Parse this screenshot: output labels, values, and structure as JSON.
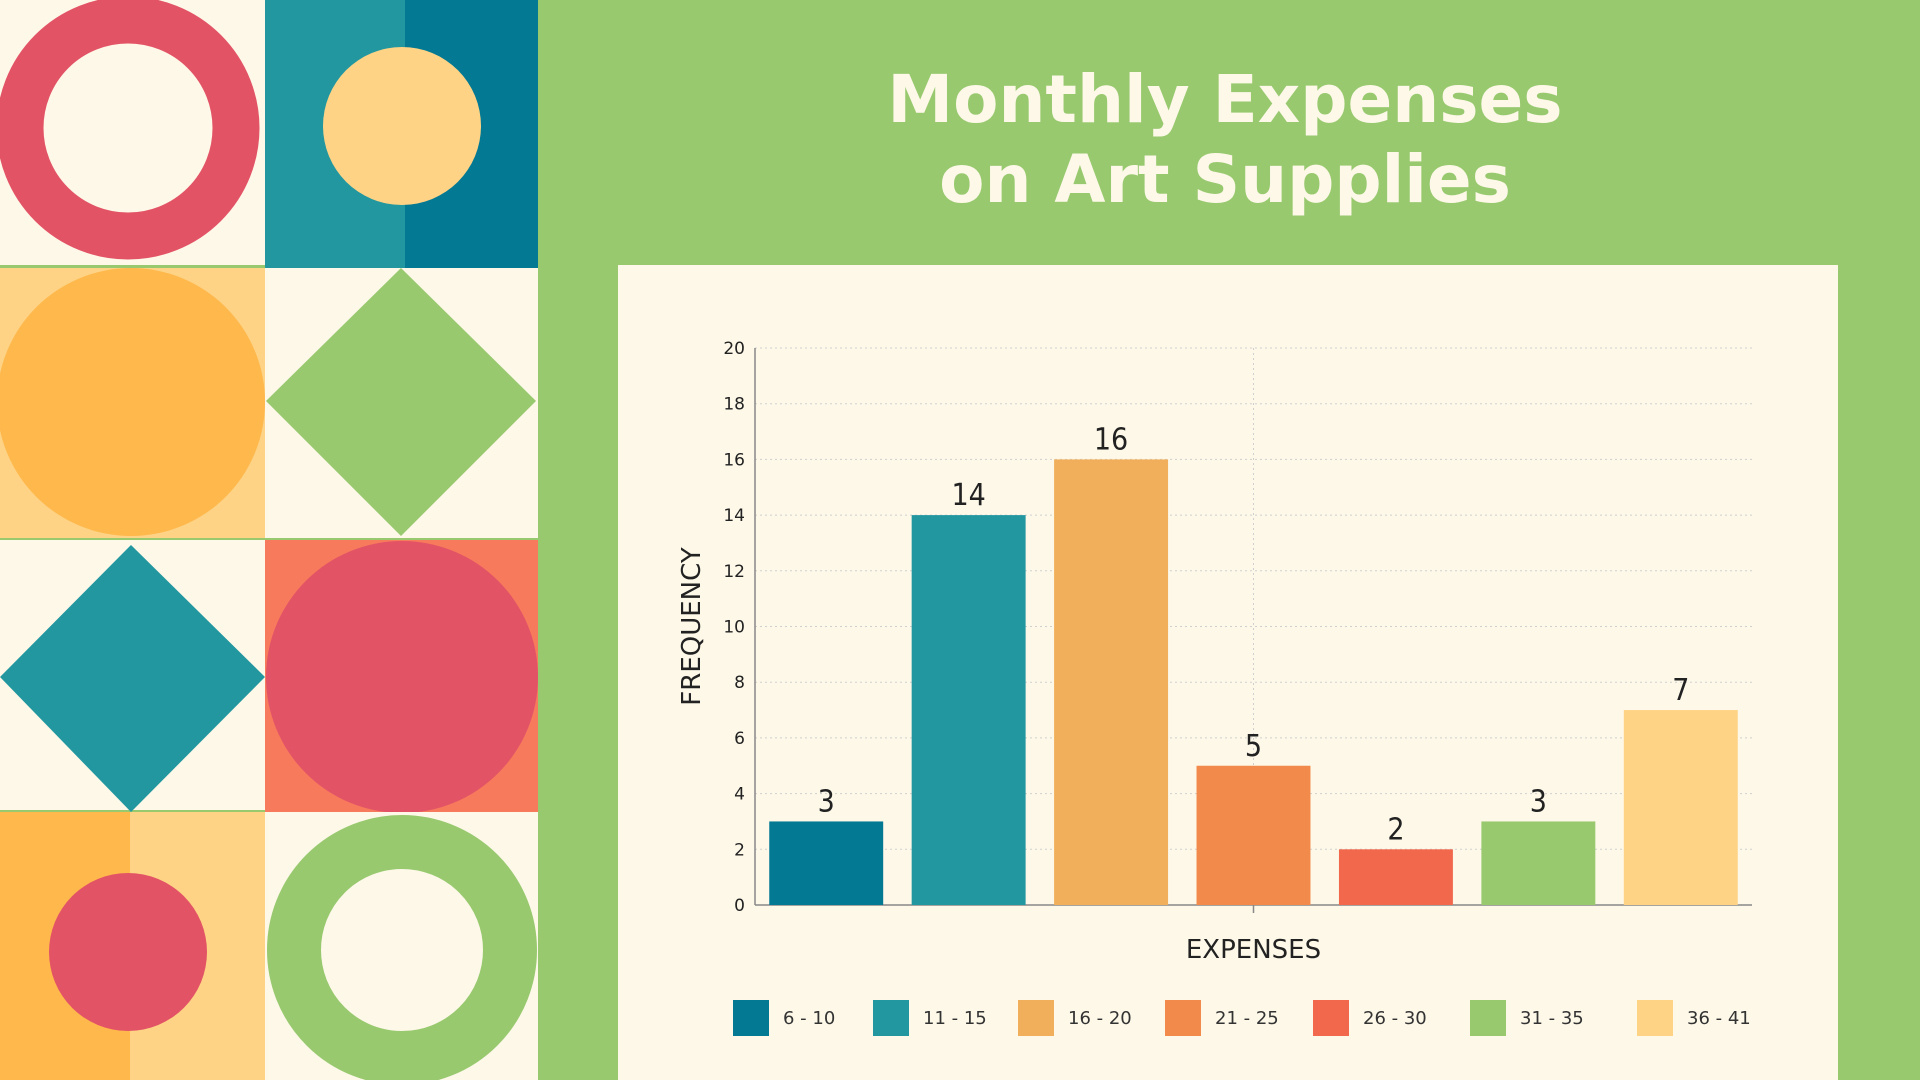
{
  "title_line1": "Monthly Expenses",
  "title_line2": "on Art Supplies",
  "colors": {
    "background": "#98c96f",
    "panel": "#fdf8e8",
    "title": "#fdf8e8"
  },
  "decor": {
    "shapes": [
      "red-ring",
      "yellow-circle",
      "orange-circle",
      "green-diamond",
      "teal-diamond",
      "red-circle",
      "red-circle-small",
      "green-ring"
    ]
  },
  "chart_data": {
    "type": "bar",
    "title": "Monthly Expenses on Art Supplies",
    "xlabel": "EXPENSES",
    "ylabel": "FREQUENCY",
    "categories": [
      "6 - 10",
      "11 - 15",
      "16 - 20",
      "21 - 25",
      "26 - 30",
      "31 - 35",
      "36 - 41"
    ],
    "values": [
      3,
      14,
      16,
      5,
      2,
      3,
      7
    ],
    "bar_colors": [
      "#047994",
      "#2297a0",
      "#f1af5b",
      "#f28a4b",
      "#f1684d",
      "#98c96f",
      "#fed385"
    ],
    "ylim": [
      0,
      20
    ],
    "yticks": [
      0,
      2,
      4,
      6,
      8,
      10,
      12,
      14,
      16,
      18,
      20
    ],
    "grid": true,
    "data_labels": true,
    "legend_position": "bottom"
  }
}
